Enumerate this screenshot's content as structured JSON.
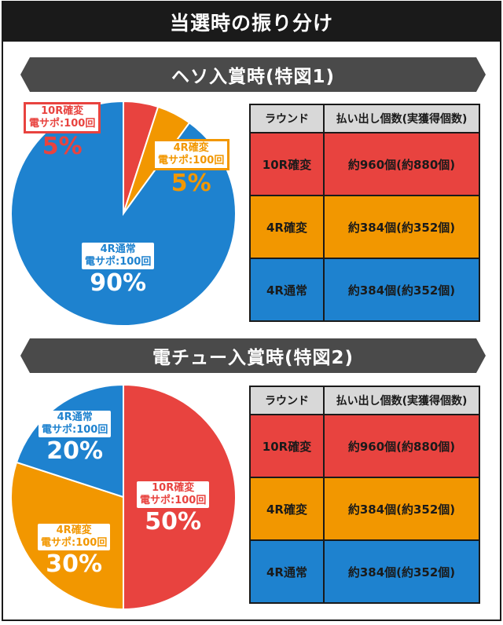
{
  "header": {
    "title": "当選時の振り分け"
  },
  "colors": {
    "red": "#e8433f",
    "orange": "#f29700",
    "blue": "#1e82cf",
    "banner": "#4a4a4a"
  },
  "sections": [
    {
      "title": "ヘソ入賞時(特図1)",
      "table": {
        "headers": [
          "ラウンド",
          "払い出し個数(実獲得個数)"
        ],
        "rows": [
          {
            "round": "10R確変",
            "payout": "約960個(約880個)",
            "color": "#e8433f"
          },
          {
            "round": "4R確変",
            "payout": "約384個(約352個)",
            "color": "#f29700"
          },
          {
            "round": "4R通常",
            "payout": "約384個(約352個)",
            "color": "#1e82cf"
          }
        ]
      }
    },
    {
      "title": "電チュー入賞時(特図2)",
      "table": {
        "headers": [
          "ラウンド",
          "払い出し個数(実獲得個数)"
        ],
        "rows": [
          {
            "round": "10R確変",
            "payout": "約960個(約880個)",
            "color": "#e8433f"
          },
          {
            "round": "4R確変",
            "payout": "約384個(約352個)",
            "color": "#f29700"
          },
          {
            "round": "4R通常",
            "payout": "約384個(約352個)",
            "color": "#1e82cf"
          }
        ]
      }
    }
  ],
  "chart_data": [
    {
      "type": "pie",
      "title": "ヘソ入賞時(特図1)",
      "slices": [
        {
          "name": "10R確変",
          "sub": "電サポ:100回",
          "value": 5,
          "label": "5%",
          "color": "#e8433f"
        },
        {
          "name": "4R確変",
          "sub": "電サポ:100回",
          "value": 5,
          "label": "5%",
          "color": "#f29700"
        },
        {
          "name": "4R通常",
          "sub": "電サポ:100回",
          "value": 90,
          "label": "90%",
          "color": "#1e82cf"
        }
      ]
    },
    {
      "type": "pie",
      "title": "電チュー入賞時(特図2)",
      "slices": [
        {
          "name": "10R確変",
          "sub": "電サポ:100回",
          "value": 50,
          "label": "50%",
          "color": "#e8433f"
        },
        {
          "name": "4R確変",
          "sub": "電サポ:100回",
          "value": 30,
          "label": "30%",
          "color": "#f29700"
        },
        {
          "name": "4R通常",
          "sub": "電サポ:100回",
          "value": 20,
          "label": "20%",
          "color": "#1e82cf"
        }
      ]
    }
  ]
}
